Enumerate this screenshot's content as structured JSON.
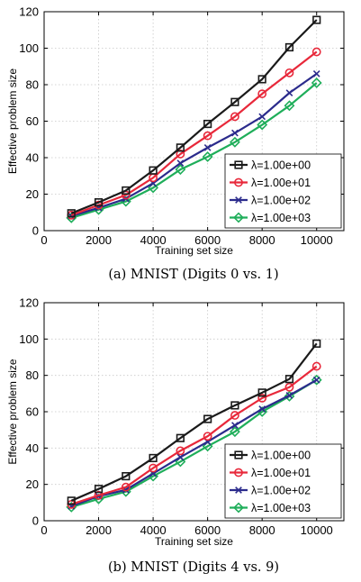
{
  "chart_data": [
    {
      "type": "line",
      "caption": "(a) MNIST (Digits 0 vs. 1)",
      "xlabel": "Training set size",
      "ylabel": "Effective problem size",
      "xlim": [
        0,
        11000
      ],
      "ylim": [
        0,
        120
      ],
      "xticks": [
        0,
        2000,
        4000,
        6000,
        8000,
        10000
      ],
      "yticks": [
        0,
        20,
        40,
        60,
        80,
        100,
        120
      ],
      "grid": true,
      "legend_position": "bottom-right",
      "x": [
        1000,
        2000,
        3000,
        4000,
        5000,
        6000,
        7000,
        8000,
        9000,
        10000
      ],
      "series": [
        {
          "name": "λ=1.00e+00",
          "color": "#1a1a1a",
          "marker": "square",
          "values": [
            9.5,
            15.5,
            22,
            33,
            45.5,
            58.5,
            70.5,
            83,
            100.5,
            115.5
          ]
        },
        {
          "name": "λ=1.00e+01",
          "color": "#e8283a",
          "marker": "circle",
          "values": [
            8.5,
            14,
            19.5,
            29,
            42,
            52,
            62.5,
            75,
            86.5,
            98
          ]
        },
        {
          "name": "λ=1.00e+02",
          "color": "#2b2b8c",
          "marker": "x",
          "values": [
            8,
            12.5,
            17.5,
            26,
            37,
            45.5,
            53.5,
            62.5,
            75.5,
            86
          ]
        },
        {
          "name": "λ=1.00e+03",
          "color": "#1fae5a",
          "marker": "diamond",
          "values": [
            7,
            11.5,
            16,
            23.5,
            33.5,
            40.5,
            48.5,
            58,
            68.5,
            81
          ]
        }
      ]
    },
    {
      "type": "line",
      "caption": "(b) MNIST (Digits 4 vs. 9)",
      "xlabel": "Training set size",
      "ylabel": "Effective problem size",
      "xlim": [
        0,
        11000
      ],
      "ylim": [
        0,
        120
      ],
      "xticks": [
        0,
        2000,
        4000,
        6000,
        8000,
        10000
      ],
      "yticks": [
        0,
        20,
        40,
        60,
        80,
        100,
        120
      ],
      "grid": true,
      "legend_position": "bottom-right",
      "x": [
        1000,
        2000,
        3000,
        4000,
        5000,
        6000,
        7000,
        8000,
        9000,
        10000
      ],
      "series": [
        {
          "name": "λ=1.00e+00",
          "color": "#1a1a1a",
          "marker": "square",
          "values": [
            11,
            17.5,
            24.5,
            34.5,
            45.5,
            56,
            63.5,
            70.5,
            78,
            97.5
          ]
        },
        {
          "name": "λ=1.00e+01",
          "color": "#e8283a",
          "marker": "circle",
          "values": [
            9,
            14,
            18.5,
            29,
            38.5,
            46.5,
            58,
            67.5,
            73.5,
            85
          ]
        },
        {
          "name": "λ=1.00e+02",
          "color": "#2b2b8c",
          "marker": "x",
          "values": [
            8,
            13.5,
            17,
            26,
            35,
            43.5,
            52.5,
            61.5,
            69,
            77.5
          ]
        },
        {
          "name": "λ=1.00e+03",
          "color": "#1fae5a",
          "marker": "diamond",
          "values": [
            7.5,
            12,
            16,
            24.5,
            32.5,
            41,
            49,
            60,
            68.5,
            77.5
          ]
        }
      ]
    }
  ]
}
